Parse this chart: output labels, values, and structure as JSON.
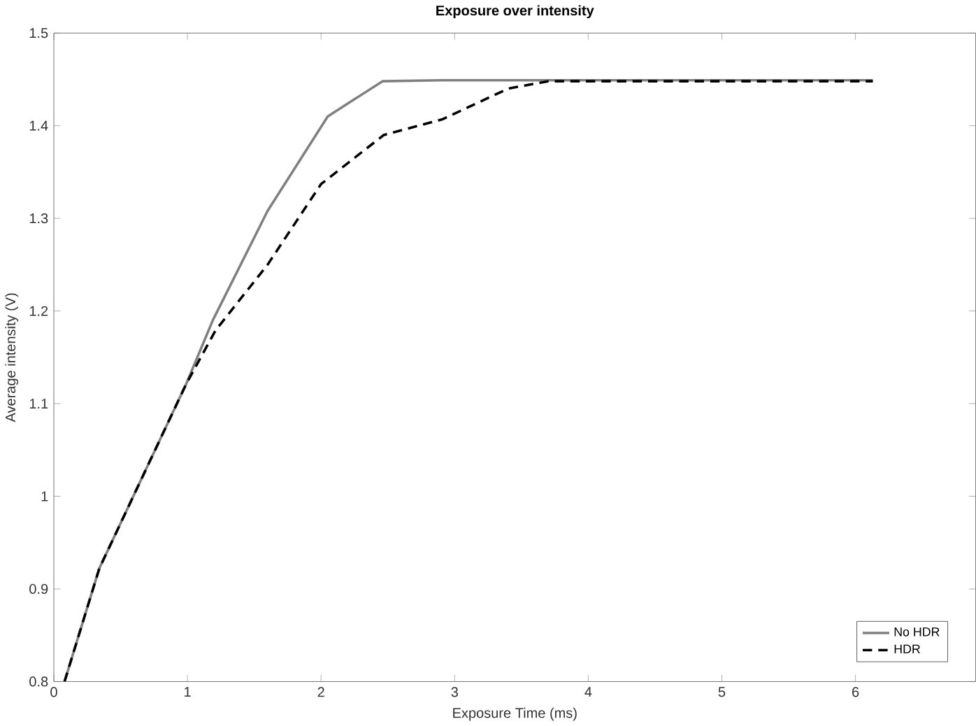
{
  "chart_data": {
    "type": "line",
    "title": "Exposure over intensity",
    "xlabel": "Exposure Time (ms)",
    "ylabel": "Average intensity (V)",
    "xlim": [
      0,
      6.9
    ],
    "ylim": [
      0.8,
      1.5
    ],
    "xticks": [
      0,
      1,
      2,
      3,
      4,
      5,
      6
    ],
    "yticks": [
      0.8,
      0.9,
      1,
      1.1,
      1.2,
      1.3,
      1.4,
      1.5
    ],
    "grid": false,
    "legend": "bottom right",
    "series": [
      {
        "name": "No HDR",
        "color": "#808080",
        "line_style": "solid",
        "x": [
          0.08,
          0.34,
          0.99,
          1.19,
          1.6,
          2.05,
          2.46,
          2.9,
          6.13
        ],
        "values": [
          0.8,
          0.922,
          1.121,
          1.19,
          1.308,
          1.41,
          1.448,
          1.449,
          1.449
        ]
      },
      {
        "name": "HDR",
        "color": "#000000",
        "line_style": "dashed",
        "x": [
          0.08,
          0.34,
          0.99,
          1.21,
          1.6,
          2.0,
          2.47,
          2.91,
          3.4,
          3.7,
          6.13
        ],
        "values": [
          0.8,
          0.922,
          1.121,
          1.179,
          1.25,
          1.337,
          1.39,
          1.407,
          1.44,
          1.448,
          1.448
        ]
      }
    ]
  }
}
